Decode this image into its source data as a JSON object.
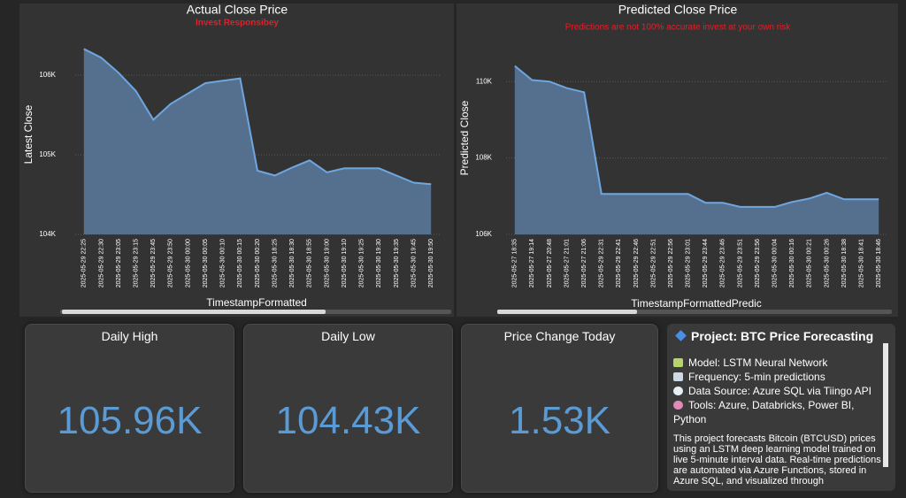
{
  "chart_data": [
    {
      "type": "area",
      "title": "Actual Close Price",
      "subtitle": "Invest Responsibey",
      "x_label": "TimestampFormatted",
      "y_label": "Latest Close",
      "color": "#6ea6df",
      "categories": [
        "2025-05-29 22:25",
        "2025-05-29 22:30",
        "2025-05-29 23:05",
        "2025-05-29 23:15",
        "2025-05-29 23:45",
        "2025-05-29 23:50",
        "2025-05-30 00:00",
        "2025-05-30 00:05",
        "2025-05-30 00:10",
        "2025-05-30 00:15",
        "2025-05-30 00:20",
        "2025-05-30 18:25",
        "2025-05-30 18:30",
        "2025-05-30 18:55",
        "2025-05-30 19:00",
        "2025-05-30 19:10",
        "2025-05-30 19:25",
        "2025-05-30 19:30",
        "2025-05-30 19:35",
        "2025-05-30 19:45",
        "2025-05-30 19:50"
      ],
      "values": [
        106330,
        106220,
        106030,
        105800,
        105440,
        105640,
        105770,
        105900,
        105930,
        105960,
        104800,
        104740,
        104840,
        104930,
        104780,
        104830,
        104830,
        104830,
        104740,
        104650,
        104630
      ],
      "ylim": [
        104000,
        106400
      ],
      "yticks": [
        {
          "value": 104000,
          "label": "104K"
        },
        {
          "value": 105000,
          "label": "105K"
        },
        {
          "value": 106000,
          "label": "106K"
        }
      ],
      "grid": true
    },
    {
      "type": "area",
      "title": "Predicted Close Price",
      "subtitle": "Predictions are not 100% accurate invest at your own risk",
      "x_label": "TimestampFormattedPredic",
      "y_label": "Predicted Close",
      "color": "#6ea6df",
      "categories": [
        "2025-05-27 18:35",
        "2025-05-27 19:14",
        "2025-05-27 20:48",
        "2025-05-27 21:01",
        "2025-05-27 21:06",
        "2025-05-29 22:31",
        "2025-05-29 22:41",
        "2025-05-29 22:46",
        "2025-05-29 22:51",
        "2025-05-29 22:56",
        "2025-05-29 23:01",
        "2025-05-29 23:44",
        "2025-05-29 23:46",
        "2025-05-29 23:51",
        "2025-05-29 23:56",
        "2025-05-30 00:04",
        "2025-05-30 00:16",
        "2025-05-30 00:21",
        "2025-05-30 00:26",
        "2025-05-30 18:38",
        "2025-05-30 18:41",
        "2025-05-30 18:46"
      ],
      "values": [
        110410,
        110040,
        110000,
        109830,
        109720,
        107060,
        107060,
        107060,
        107060,
        107060,
        107060,
        106830,
        106830,
        106720,
        106720,
        106720,
        106850,
        106940,
        107090,
        106920,
        106920,
        106920
      ],
      "ylim": [
        106000,
        110700
      ],
      "yticks": [
        {
          "value": 106000,
          "label": "106K"
        },
        {
          "value": 108000,
          "label": "108K"
        },
        {
          "value": 110000,
          "label": "110K"
        }
      ],
      "grid": true
    }
  ],
  "cards": [
    {
      "title": "Daily High",
      "value": "105.96K"
    },
    {
      "title": "Daily Low",
      "value": "104.43K"
    },
    {
      "title": "Price Change Today",
      "value": "1.53K"
    }
  ],
  "project": {
    "title": "Project: BTC Price Forecasting",
    "items": [
      "Model: LSTM Neural Network",
      "Frequency: 5-min predictions",
      "Data Source: Azure SQL via Tiingo API",
      "Tools: Azure, Databricks, Power BI, Python"
    ],
    "description": "This project forecasts Bitcoin (BTCUSD) prices using an LSTM deep learning model trained on live 5-minute interval data. Real-time predictions are automated via Azure Functions, stored in Azure SQL, and visualized through"
  }
}
